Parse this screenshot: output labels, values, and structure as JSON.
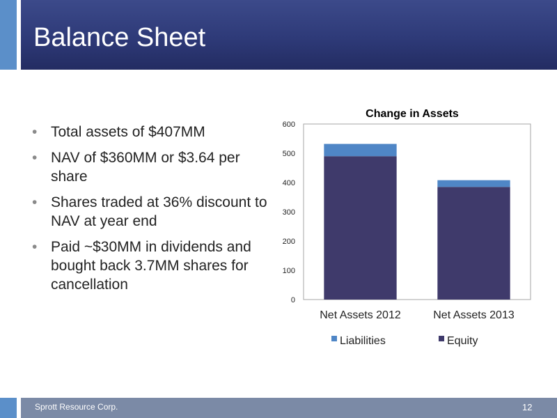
{
  "header": {
    "title": "Balance Sheet"
  },
  "bullets": [
    "Total assets of $407MM",
    "NAV of $360MM or $3.64 per share",
    "Shares traded at 36% discount to NAV at year end",
    "Paid ~$30MM in dividends and bought back 3.7MM shares for cancellation"
  ],
  "chart_data": {
    "type": "bar",
    "stacked": true,
    "title": "Change in Assets",
    "categories": [
      "Net Assets 2012",
      "Net Assets 2013"
    ],
    "series": [
      {
        "name": "Equity",
        "values": [
          490,
          385
        ],
        "color": "#3f3a6b"
      },
      {
        "name": "Liabilities",
        "values": [
          42,
          23
        ],
        "color": "#4f86c6"
      }
    ],
    "ylim": [
      0,
      600
    ],
    "yticks": [
      0,
      100,
      200,
      300,
      400,
      500,
      600
    ],
    "grid": false,
    "legend": "bottom",
    "legend_order": [
      "Liabilities",
      "Equity"
    ]
  },
  "footer": {
    "company": "Sprott Resource Corp.",
    "page": "12"
  }
}
